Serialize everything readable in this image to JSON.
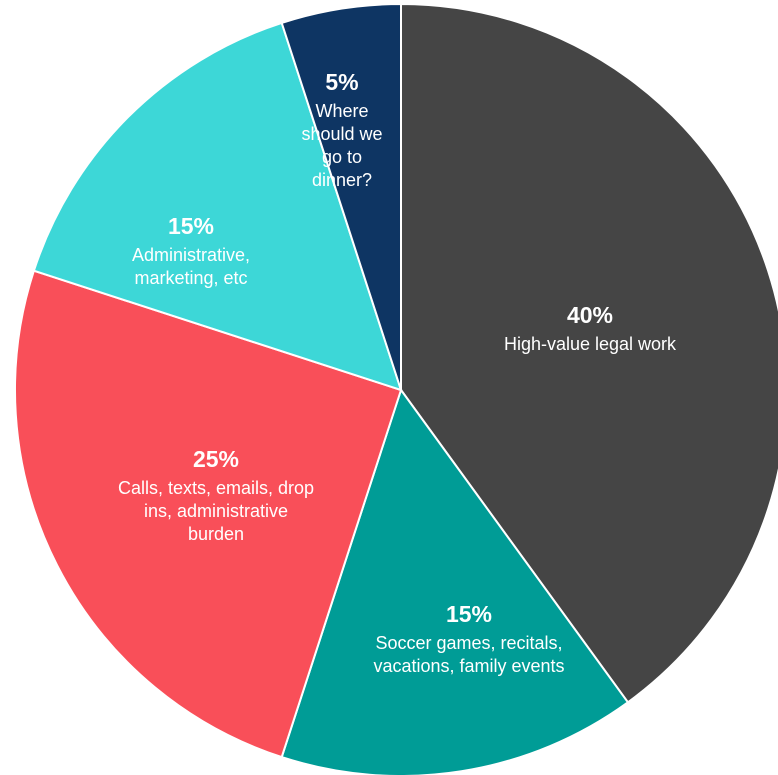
{
  "chart_data": {
    "type": "pie",
    "title": "",
    "start_angle_deg": 0,
    "direction": "clockwise",
    "slices": [
      {
        "value": 40,
        "pct_label": "40%",
        "label_lines": [
          "High-value legal work"
        ],
        "color": "#454545"
      },
      {
        "value": 15,
        "pct_label": "15%",
        "label_lines": [
          "Soccer games, recitals,",
          "vacations, family events"
        ],
        "color": "#009C96"
      },
      {
        "value": 25,
        "pct_label": "25%",
        "label_lines": [
          "Calls, texts, emails, drop",
          "ins, administrative",
          "burden"
        ],
        "color": "#F94F59"
      },
      {
        "value": 15,
        "pct_label": "15%",
        "label_lines": [
          "Administrative,",
          "marketing, etc"
        ],
        "color": "#3DD7D7"
      },
      {
        "value": 5,
        "pct_label": "5%",
        "label_lines": [
          "Where",
          "should we",
          "go to",
          "dinner?"
        ],
        "color": "#0E3563"
      }
    ],
    "slice_border_color": "#ffffff"
  }
}
